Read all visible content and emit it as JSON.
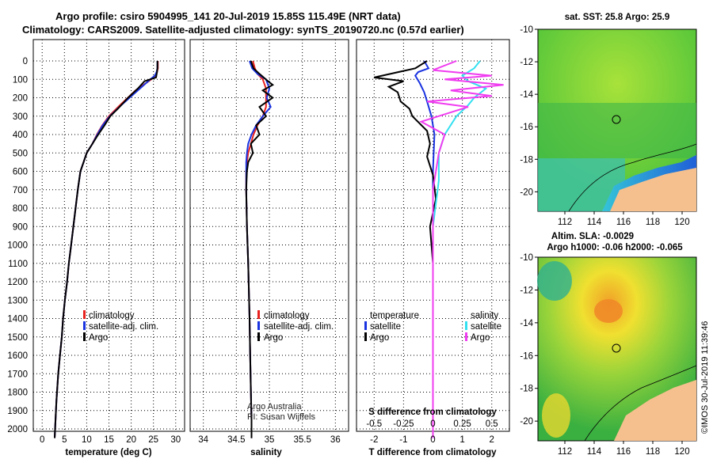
{
  "title": {
    "line1": "Argo profile: csiro 5904995_141 20-Jul-2019 15.85S 115.49E (NRT data)",
    "line2": "Climatology: CARS2009. Satellite-adjusted climatology: synTS_20190720.nc (0.57d earlier)"
  },
  "colors": {
    "climatology": "#e8231f",
    "satellite": "#1a33e0",
    "argo": "#000000",
    "sat_sal": "#33e0f0",
    "argo_sal": "#f03cf0",
    "land": "#f6c08e"
  },
  "depth_axis": {
    "ticks": [
      0,
      100,
      200,
      300,
      400,
      500,
      600,
      700,
      800,
      900,
      1000,
      1100,
      1200,
      1300,
      1400,
      1500,
      1600,
      1700,
      1800,
      1900,
      2000
    ]
  },
  "temp_panel": {
    "xlabel": "temperature (deg C)",
    "xticks": [
      0,
      5,
      10,
      15,
      20,
      25,
      30
    ],
    "legend": {
      "clim": "climatology",
      "sat": "satellite-adj. clim.",
      "argo": "Argo"
    }
  },
  "sal_panel": {
    "xlabel": "salinity",
    "xticks": [
      "34",
      "34.5",
      "35",
      "35.5",
      "36"
    ],
    "legend": {
      "clim": "climatology",
      "sat": "satellite-adj. clim.",
      "argo": "Argo"
    },
    "credit1": "Argo Australia",
    "credit2": "PI: Susan Wijffels"
  },
  "diff_panel": {
    "xlabel": "T difference from climatology",
    "xticks": [
      "-2",
      "-1",
      "0",
      "1",
      "2"
    ],
    "s_label": "S difference from climatology",
    "s_ticks": [
      "-0.5",
      "-0.25",
      "0",
      "0.25",
      "0.5"
    ],
    "legend_t": {
      "head": "temperature",
      "sat": "satellite",
      "argo": "Argo"
    },
    "legend_s": {
      "head": "salinity",
      "sat": "satellite",
      "argo": "Argo"
    }
  },
  "map_sst": {
    "title": "sat. SST: 25.8 Argo: 25.9",
    "yticks": [
      "-10",
      "-12",
      "-14",
      "-16",
      "-18",
      "-20"
    ],
    "xticks": [
      "112",
      "114",
      "116",
      "118",
      "120"
    ]
  },
  "map_sla": {
    "title1": "Altim. SLA: -0.0029",
    "title2": "Argo h1000: -0.06 h2000: -0.065",
    "yticks": [
      "-10",
      "-12",
      "-14",
      "-16",
      "-18",
      "-20"
    ],
    "xticks": [
      "112",
      "114",
      "116",
      "118",
      "120"
    ]
  },
  "stamp": "©IMOS 30-Jul-2019 11:39:46",
  "chart_data": [
    {
      "type": "line",
      "xlabel": "temperature (deg C)",
      "ylabel": "",
      "xlim": [
        -2,
        32
      ],
      "ylim": [
        2050,
        0
      ],
      "series": [
        {
          "name": "climatology",
          "x": [
            26.0,
            26.0,
            25.8,
            25.4,
            24.5,
            21.0,
            17.5,
            15.0,
            13.5,
            12.3,
            11.3,
            10.0,
            9.3,
            8.6,
            8.0,
            7.5,
            7.0,
            6.5,
            6.0,
            5.6,
            5.1,
            4.7,
            4.4,
            4.0,
            3.6,
            3.2,
            2.8
          ],
          "y": [
            0,
            40,
            60,
            80,
            100,
            160,
            240,
            300,
            350,
            400,
            450,
            500,
            550,
            600,
            700,
            800,
            900,
            1000,
            1100,
            1200,
            1300,
            1400,
            1500,
            1600,
            1700,
            1850,
            2050
          ]
        },
        {
          "name": "satellite-adj. clim.",
          "x": [
            25.9,
            25.9,
            25.7,
            25.3,
            24.3,
            21.5,
            17.8,
            15.2,
            13.6,
            12.4,
            11.3,
            10.0,
            9.3,
            8.6,
            8.0,
            7.5,
            7.0,
            6.5,
            6.0,
            5.6,
            5.1,
            4.7,
            4.4,
            4.0,
            3.6,
            3.2,
            2.8
          ],
          "y": [
            0,
            40,
            60,
            80,
            100,
            160,
            240,
            300,
            350,
            400,
            450,
            500,
            550,
            600,
            700,
            800,
            900,
            1000,
            1100,
            1200,
            1300,
            1400,
            1500,
            1600,
            1700,
            1850,
            2050
          ]
        },
        {
          "name": "Argo",
          "x": [
            25.9,
            25.9,
            25.8,
            25.6,
            23.0,
            21.5,
            19.3,
            17.0,
            15.3,
            14.0,
            12.6,
            11.3,
            10.0,
            9.3,
            8.6,
            8.0,
            7.5,
            7.0,
            6.5,
            6.0,
            5.6,
            5.1,
            4.7,
            4.4,
            4.0,
            3.6,
            3.2,
            2.8
          ],
          "y": [
            0,
            40,
            60,
            90,
            110,
            150,
            200,
            260,
            300,
            350,
            400,
            450,
            500,
            550,
            600,
            700,
            800,
            900,
            1000,
            1100,
            1200,
            1300,
            1400,
            1500,
            1600,
            1700,
            1850,
            2050
          ]
        }
      ]
    },
    {
      "type": "line",
      "xlabel": "salinity",
      "ylabel": "",
      "xlim": [
        33.8,
        36.2
      ],
      "ylim": [
        2050,
        0
      ],
      "series": [
        {
          "name": "climatology",
          "x": [
            34.75,
            34.78,
            34.82,
            34.9,
            34.95,
            34.95,
            34.9,
            34.82,
            34.76,
            34.72,
            34.68,
            34.66,
            34.65,
            34.65,
            34.66,
            34.68,
            34.7,
            34.71,
            34.72,
            34.73,
            34.73
          ],
          "y": [
            0,
            40,
            70,
            100,
            150,
            250,
            300,
            350,
            400,
            450,
            500,
            550,
            600,
            700,
            900,
            1100,
            1400,
            1600,
            1800,
            1950,
            2050
          ]
        },
        {
          "name": "satellite-adj. clim.",
          "x": [
            34.7,
            34.74,
            34.82,
            34.95,
            35.0,
            34.96,
            35.02,
            34.9,
            34.8,
            34.73,
            34.68,
            34.66,
            34.65,
            34.65,
            34.66,
            34.68,
            34.7,
            34.71,
            34.72,
            34.73,
            34.73
          ],
          "y": [
            0,
            40,
            70,
            100,
            150,
            200,
            250,
            300,
            350,
            400,
            450,
            500,
            550,
            700,
            900,
            1100,
            1400,
            1600,
            1800,
            1950,
            2050
          ]
        },
        {
          "name": "Argo",
          "x": [
            34.72,
            34.76,
            34.85,
            34.98,
            35.05,
            34.9,
            35.05,
            34.85,
            34.95,
            34.8,
            34.85,
            34.72,
            34.75,
            34.68,
            34.66,
            34.65,
            34.66,
            34.68,
            34.7,
            34.71,
            34.72,
            34.73,
            34.73
          ],
          "y": [
            0,
            40,
            70,
            110,
            130,
            160,
            200,
            250,
            300,
            350,
            400,
            450,
            500,
            550,
            600,
            700,
            900,
            1100,
            1400,
            1600,
            1800,
            1950,
            2050
          ]
        }
      ]
    },
    {
      "type": "line",
      "xlabel": "T difference from climatology",
      "ylabel": "",
      "xlim": [
        -2.6,
        2.6
      ],
      "ylim": [
        2050,
        0
      ],
      "series": [
        {
          "name": "temperature satellite",
          "x": [
            -0.3,
            -0.15,
            -0.5,
            -0.6,
            -0.45,
            -0.3,
            -0.2,
            -0.05,
            0.05,
            0.0,
            0.0,
            0.0
          ],
          "y": [
            0,
            40,
            60,
            80,
            120,
            170,
            220,
            300,
            400,
            600,
            1000,
            2050
          ]
        },
        {
          "name": "temperature Argo",
          "x": [
            -0.2,
            -0.6,
            -2.0,
            -1.0,
            -1.5,
            -1.2,
            -1.1,
            -0.8,
            -0.7,
            -0.2,
            -0.1,
            -0.2,
            0.0,
            0.1,
            -0.1,
            0.0,
            0.0,
            0.0
          ],
          "y": [
            0,
            40,
            90,
            110,
            140,
            170,
            220,
            260,
            300,
            380,
            450,
            520,
            620,
            750,
            900,
            1100,
            1500,
            2050
          ]
        },
        {
          "name": "salinity satellite",
          "x": [
            0.4,
            0.35,
            0.25,
            0.3,
            0.45,
            0.35,
            0.3,
            0.2,
            0.1,
            0.05,
            0.05,
            0.0,
            0.0
          ],
          "y": [
            0,
            40,
            80,
            110,
            150,
            200,
            240,
            300,
            400,
            500,
            650,
            900,
            2050
          ]
        },
        {
          "name": "salinity Argo",
          "x": [
            0.2,
            0.0,
            0.5,
            0.1,
            0.6,
            0.15,
            0.5,
            -0.05,
            0.3,
            -0.1,
            0.1,
            0.05,
            0.0,
            0.0
          ],
          "y": [
            0,
            50,
            80,
            100,
            130,
            160,
            190,
            220,
            250,
            330,
            400,
            500,
            700,
            2050
          ]
        }
      ]
    }
  ]
}
